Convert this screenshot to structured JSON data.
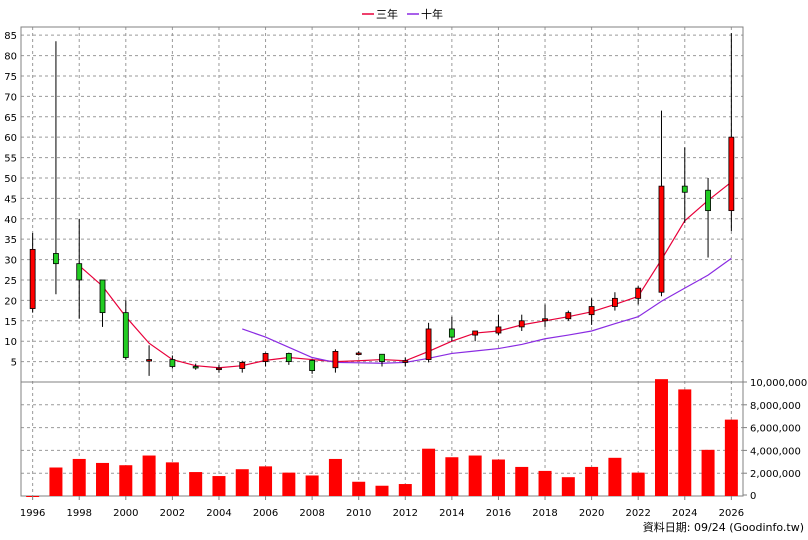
{
  "chart_data": {
    "type": "candlestick+line+bar",
    "legend": [
      {
        "name": "三年",
        "color": "#e8003a"
      },
      {
        "name": "十年",
        "color": "#8a2be2"
      }
    ],
    "x_ticks": [
      "1996",
      "1998",
      "2000",
      "2002",
      "2004",
      "2006",
      "2008",
      "2010",
      "2012",
      "2014",
      "2016",
      "2018",
      "2020",
      "2022",
      "2024",
      "2026"
    ],
    "price_axis": {
      "ylim": [
        0,
        87
      ],
      "ticks": [
        5,
        10,
        15,
        20,
        25,
        30,
        35,
        40,
        45,
        50,
        55,
        60,
        65,
        70,
        75,
        80,
        85
      ]
    },
    "volume_axis": {
      "ylim": [
        0,
        10000000
      ],
      "ticks": [
        0,
        2000000,
        4000000,
        6000000,
        8000000,
        10000000
      ],
      "tick_labels": [
        "0",
        "2,000,000",
        "4,000,000",
        "6,000,000",
        "8,000,000",
        "10,000,000"
      ]
    },
    "candles": [
      {
        "year": 1996,
        "open": 18,
        "close": 32.5,
        "high": 36.5,
        "low": 17
      },
      {
        "year": 1997,
        "open": 31.5,
        "close": 29,
        "high": 83.5,
        "low": 21.5
      },
      {
        "year": 1998,
        "open": 29,
        "close": 25,
        "high": 40,
        "low": 15.5
      },
      {
        "year": 1999,
        "open": 25,
        "close": 17,
        "high": 25,
        "low": 13.5
      },
      {
        "year": 2000,
        "open": 17,
        "close": 6,
        "high": 20,
        "low": 5.5
      },
      {
        "year": 2001,
        "open": 5.5,
        "close": 5.5,
        "high": 9,
        "low": 1.5
      },
      {
        "year": 2002,
        "open": 5.5,
        "close": 3.8,
        "high": 6.5,
        "low": 3.3
      },
      {
        "year": 2003,
        "open": 3.8,
        "close": 3.5,
        "high": 4.5,
        "low": 3
      },
      {
        "year": 2004,
        "open": 3.1,
        "close": 3.4,
        "high": 4.2,
        "low": 2.3
      },
      {
        "year": 2005,
        "open": 3.3,
        "close": 4.8,
        "high": 5.2,
        "low": 2.3
      },
      {
        "year": 2006,
        "open": 5,
        "close": 7,
        "high": 7.2,
        "low": 3.8
      },
      {
        "year": 2007,
        "open": 7,
        "close": 5,
        "high": 7.2,
        "low": 4.2
      },
      {
        "year": 2008,
        "open": 5.3,
        "close": 2.8,
        "high": 5.5,
        "low": 2
      },
      {
        "year": 2009,
        "open": 3.5,
        "close": 7.5,
        "high": 8,
        "low": 2.3
      },
      {
        "year": 2010,
        "open": 7,
        "close": 7.1,
        "high": 7.5,
        "low": 6.5
      },
      {
        "year": 2011,
        "open": 6.8,
        "close": 5,
        "high": 6.8,
        "low": 3.8
      },
      {
        "year": 2012,
        "open": 4.8,
        "close": 5.2,
        "high": 6,
        "low": 3.8
      },
      {
        "year": 2013,
        "open": 5.5,
        "close": 13,
        "high": 14.5,
        "low": 4.8
      },
      {
        "year": 2014,
        "open": 13,
        "close": 11,
        "high": 16,
        "low": 10
      },
      {
        "year": 2015,
        "open": 11.5,
        "close": 12.5,
        "high": 12.5,
        "low": 10
      },
      {
        "year": 2016,
        "open": 12,
        "close": 13.5,
        "high": 16.5,
        "low": 11.5
      },
      {
        "year": 2017,
        "open": 13.5,
        "close": 15,
        "high": 16.5,
        "low": 12.5
      },
      {
        "year": 2018,
        "open": 15,
        "close": 15.5,
        "high": 19,
        "low": 13.5
      },
      {
        "year": 2019,
        "open": 15.5,
        "close": 17,
        "high": 17.5,
        "low": 15
      },
      {
        "year": 2020,
        "open": 16.5,
        "close": 18.5,
        "high": 20.5,
        "low": 14
      },
      {
        "year": 2021,
        "open": 18.5,
        "close": 20.5,
        "high": 22,
        "low": 17.5
      },
      {
        "year": 2022,
        "open": 20.5,
        "close": 23,
        "high": 23.5,
        "low": 19
      },
      {
        "year": 2023,
        "open": 22,
        "close": 48,
        "high": 66.5,
        "low": 21
      },
      {
        "year": 2024,
        "open": 48,
        "close": 46.5,
        "high": 57.5,
        "low": 39
      },
      {
        "year": 2025,
        "open": 47,
        "close": 42,
        "high": 50,
        "low": 30.5
      },
      {
        "year": 2026,
        "open": 42,
        "close": 60,
        "high": 85.5,
        "low": 37
      }
    ],
    "series": [
      {
        "name": "三年",
        "color": "#e8003a",
        "x": [
          1998,
          1999,
          2000,
          2001,
          2002,
          2003,
          2004,
          2005,
          2006,
          2007,
          2008,
          2009,
          2010,
          2011,
          2012,
          2013,
          2014,
          2015,
          2016,
          2017,
          2018,
          2019,
          2020,
          2021,
          2022,
          2023,
          2024,
          2025,
          2026
        ],
        "values": [
          28.5,
          23.5,
          16,
          9.5,
          5.5,
          4,
          3.5,
          4,
          5.3,
          6,
          5.5,
          5,
          5.2,
          5.5,
          5.2,
          7.5,
          10,
          12,
          12.5,
          14,
          15,
          16,
          17.2,
          19,
          21,
          30,
          39.5,
          44.5,
          49
        ]
      },
      {
        "name": "十年",
        "color": "#8a2be2",
        "x": [
          2005,
          2006,
          2007,
          2008,
          2009,
          2010,
          2011,
          2012,
          2013,
          2014,
          2015,
          2016,
          2017,
          2018,
          2019,
          2020,
          2021,
          2022,
          2023,
          2024,
          2025,
          2026
        ],
        "values": [
          13,
          11,
          8.5,
          6,
          4.8,
          4.7,
          4.6,
          4.8,
          5.8,
          7,
          7.6,
          8.2,
          9.2,
          10.6,
          11.5,
          12.5,
          14.3,
          16,
          19.8,
          23,
          26.2,
          30.3
        ]
      }
    ],
    "volume": {
      "years": [
        1996,
        1997,
        1998,
        1999,
        2000,
        2001,
        2002,
        2003,
        2004,
        2005,
        2006,
        2007,
        2008,
        2009,
        2010,
        2011,
        2012,
        2013,
        2014,
        2015,
        2016,
        2017,
        2018,
        2019,
        2020,
        2021,
        2022,
        2023,
        2024,
        2025,
        2026
      ],
      "values": [
        0,
        2500000,
        3250000,
        2900000,
        2700000,
        3550000,
        2950000,
        2100000,
        1750000,
        2350000,
        2600000,
        2050000,
        1800000,
        3250000,
        1250000,
        900000,
        1050000,
        4150000,
        3400000,
        3550000,
        3200000,
        2550000,
        2200000,
        1650000,
        2550000,
        3350000,
        2050000,
        10250000,
        9350000,
        4050000,
        6700000
      ]
    },
    "source_note": "資料日期: 09/24  (Goodinfo.tw)"
  }
}
